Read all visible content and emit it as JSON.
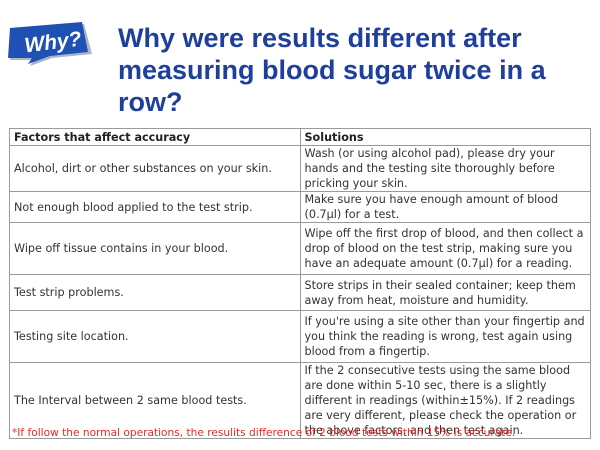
{
  "badge": {
    "label": "Why?",
    "color": "#1f50b4"
  },
  "title": "Why were results different after measuring blood sugar twice in a row?",
  "table": {
    "headers": [
      "Factors that affect accuracy",
      "Solutions"
    ],
    "rows": [
      {
        "factor": "Alcohol, dirt or other substances on your skin.",
        "solution": "Wash (or using alcohol pad), please dry your hands and the testing site thoroughly before pricking your skin."
      },
      {
        "factor": "Not enough blood applied to the test strip.",
        "solution": "Make sure you have enough amount of blood (0.7μl) for a test."
      },
      {
        "factor": "Wipe off tissue contains in your blood.",
        "solution": "Wipe off the first drop of blood, and then collect a drop of blood on the test strip, making sure you have an adequate amount (0.7μl) for a reading."
      },
      {
        "factor": "Test strip problems.",
        "solution": "Store strips in their sealed container; keep them away from heat, moisture and humidity."
      },
      {
        "factor": "Testing site location.",
        "solution": "If you're using a site other than your fingertip and you think the reading is wrong, test again using blood from a fingertip."
      },
      {
        "factor": "The Interval between 2 same blood tests.",
        "solution": "If the 2 consecutive tests using the same blood are done within 5-10 sec, there is a slightly different in readings (within±15%). If 2 readings are very different, please check the operation or the above factors, and then test again."
      }
    ]
  },
  "footnote": "*If follow the normal operations, the resulits difference of 2 blood tests within 15% is accurate.",
  "colors": {
    "title": "#1f3f9c",
    "footnote": "#e32a2a",
    "border": "#9a9a9a"
  }
}
